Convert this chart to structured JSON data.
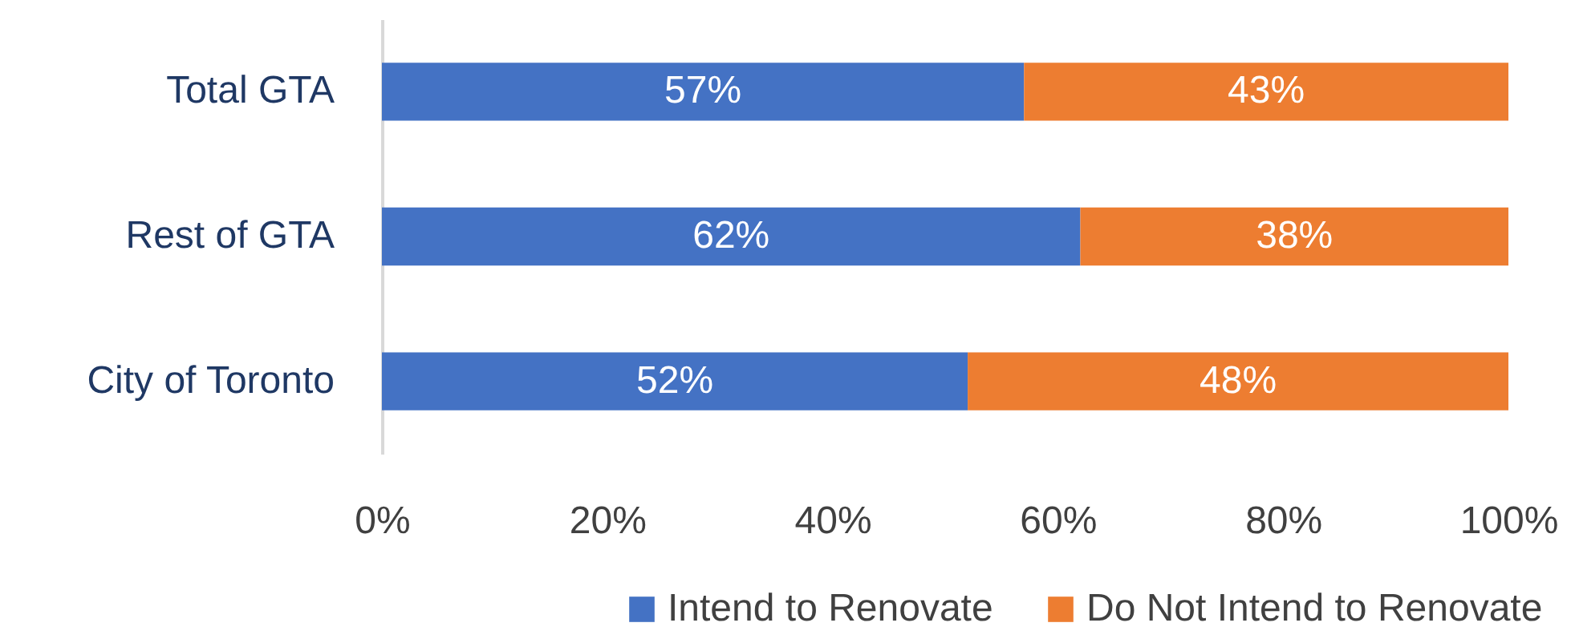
{
  "chart_data": {
    "type": "bar",
    "orientation": "horizontal",
    "stacked": true,
    "categories": [
      "Total GTA",
      "Rest of GTA",
      "City of Toronto"
    ],
    "series": [
      {
        "name": "Intend to Renovate",
        "color": "#4472c4",
        "values": [
          57,
          62,
          52
        ],
        "value_labels": [
          "57%",
          "62%",
          "52%"
        ]
      },
      {
        "name": "Do Not Intend to Renovate",
        "color": "#ed7d31",
        "values": [
          43,
          38,
          48
        ],
        "value_labels": [
          "43%",
          "38%",
          "48%"
        ]
      }
    ],
    "xlim": [
      0,
      100
    ],
    "xticks": [
      {
        "value": 0,
        "label": "0%"
      },
      {
        "value": 20,
        "label": "20%"
      },
      {
        "value": 40,
        "label": "40%"
      },
      {
        "value": 60,
        "label": "60%"
      },
      {
        "value": 80,
        "label": "80%"
      },
      {
        "value": 100,
        "label": "100%"
      }
    ],
    "grid": false,
    "legend": "bottom"
  }
}
